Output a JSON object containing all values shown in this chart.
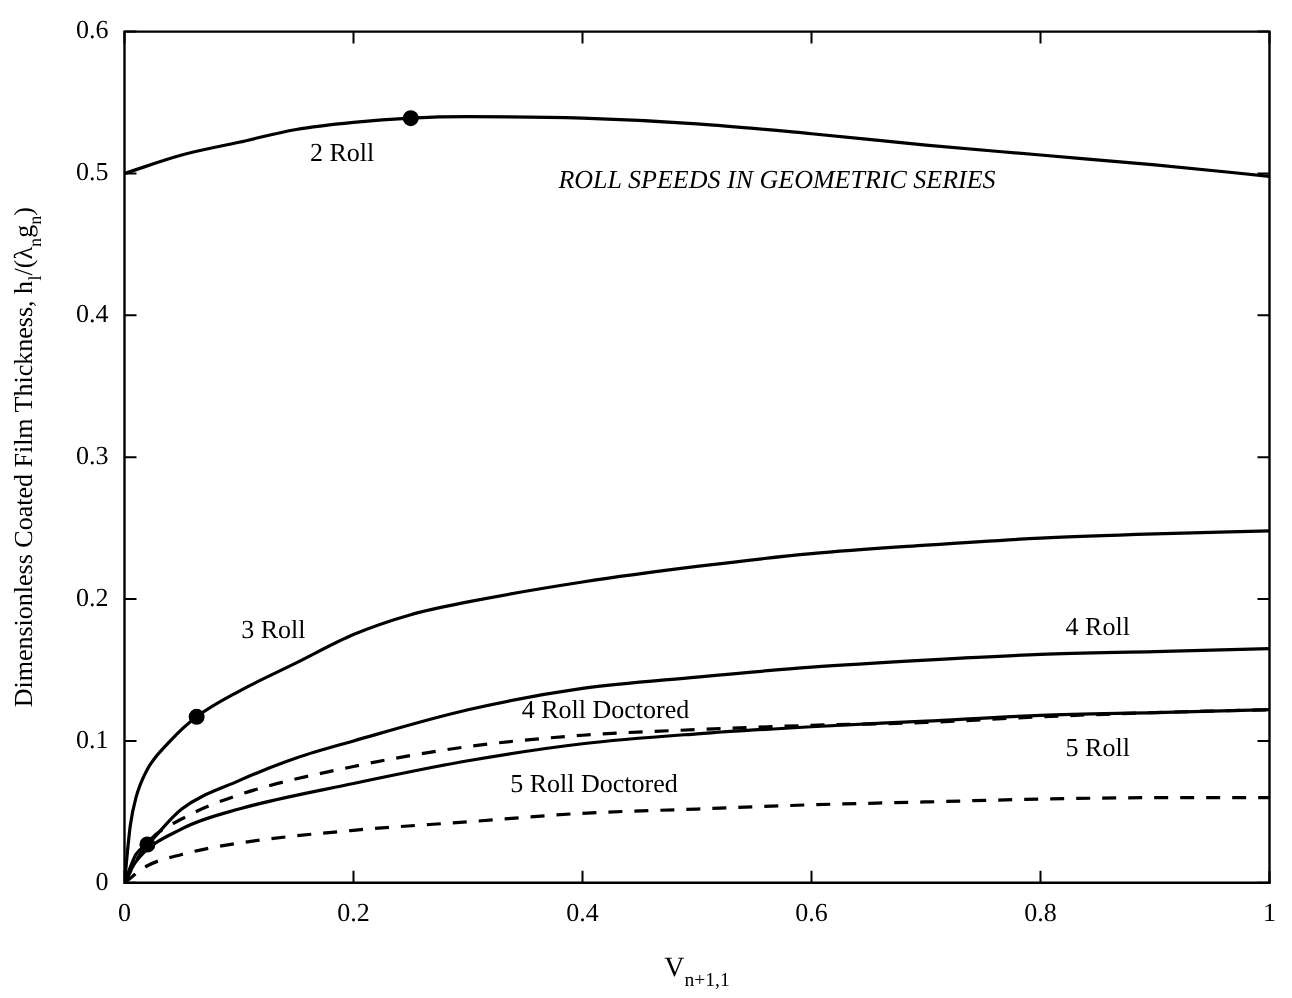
{
  "chart_data": {
    "type": "line",
    "xlabel": "V$_{n+1,1}$",
    "ylabel": "Dimensionless Coated Film Thickness, h$_{l}$/(λ$_{n}$g$_{n}$)",
    "xlim": [
      0,
      1
    ],
    "xticks": [
      0,
      0.2,
      0.4,
      0.6,
      0.8,
      1
    ],
    "ylim": [
      0,
      0.6
    ],
    "yticks": [
      0,
      0.1,
      0.2,
      0.3,
      0.4,
      0.5,
      0.6
    ],
    "grid": false,
    "legend": false,
    "marker": "none",
    "annotations": [
      "ROLL SPEEDS IN GEOMETRIC SERIES"
    ],
    "series": [
      {
        "name": "2 Roll",
        "color": "#000000",
        "line_style": "solid",
        "x": [
          0,
          0.05,
          0.1,
          0.15,
          0.2,
          0.25,
          0.3,
          0.4,
          0.5,
          0.6,
          0.7,
          0.8,
          0.9,
          1
        ],
        "values": [
          0.5,
          0.513,
          0.522,
          0.531,
          0.536,
          0.539,
          0.54,
          0.539,
          0.535,
          0.528,
          0.52,
          0.513,
          0.506,
          0.498
        ]
      },
      {
        "name": "3 Roll",
        "color": "#000000",
        "line_style": "solid",
        "x": [
          0,
          0.005,
          0.01,
          0.02,
          0.04,
          0.063,
          0.1,
          0.15,
          0.2,
          0.25,
          0.3,
          0.4,
          0.5,
          0.6,
          0.7,
          0.8,
          0.9,
          1
        ],
        "values": [
          0,
          0.04,
          0.06,
          0.08,
          0.1,
          0.117,
          0.135,
          0.155,
          0.175,
          0.189,
          0.198,
          0.212,
          0.223,
          0.232,
          0.238,
          0.243,
          0.246,
          0.248
        ]
      },
      {
        "name": "4 Roll",
        "color": "#000000",
        "line_style": "solid",
        "x": [
          0,
          0.01,
          0.02,
          0.05,
          0.1,
          0.15,
          0.2,
          0.3,
          0.4,
          0.5,
          0.6,
          0.7,
          0.8,
          0.9,
          1
        ],
        "values": [
          0,
          0.02,
          0.027,
          0.052,
          0.072,
          0.088,
          0.1,
          0.122,
          0.137,
          0.145,
          0.152,
          0.157,
          0.161,
          0.163,
          0.165
        ]
      },
      {
        "name": "4 Roll Doctored",
        "color": "#000000",
        "line_style": "dashed",
        "x": [
          0,
          0.02,
          0.05,
          0.1,
          0.2,
          0.3,
          0.4,
          0.5,
          0.6,
          0.7,
          0.8,
          0.9,
          1
        ],
        "values": [
          0,
          0.028,
          0.045,
          0.062,
          0.082,
          0.096,
          0.104,
          0.108,
          0.111,
          0.113,
          0.117,
          0.12,
          0.122
        ]
      },
      {
        "name": "5 Roll",
        "color": "#000000",
        "line_style": "solid",
        "x": [
          0,
          0.01,
          0.05,
          0.1,
          0.2,
          0.3,
          0.4,
          0.5,
          0.6,
          0.7,
          0.8,
          0.9,
          1
        ],
        "values": [
          0,
          0.015,
          0.038,
          0.052,
          0.07,
          0.086,
          0.098,
          0.105,
          0.11,
          0.114,
          0.118,
          0.12,
          0.122
        ]
      },
      {
        "name": "5 Roll Doctored",
        "color": "#000000",
        "line_style": "dashed",
        "x": [
          0,
          0.02,
          0.05,
          0.1,
          0.2,
          0.3,
          0.4,
          0.5,
          0.6,
          0.7,
          0.8,
          0.9,
          1
        ],
        "values": [
          0,
          0.012,
          0.02,
          0.028,
          0.037,
          0.043,
          0.049,
          0.052,
          0.055,
          0.057,
          0.059,
          0.06,
          0.06
        ]
      },
      {
        "type": "scatter",
        "color": "#000000",
        "marker": "circle",
        "x": [
          0.25,
          0.063,
          0.02
        ],
        "values": [
          0.539,
          0.117,
          0.027
        ]
      }
    ]
  }
}
